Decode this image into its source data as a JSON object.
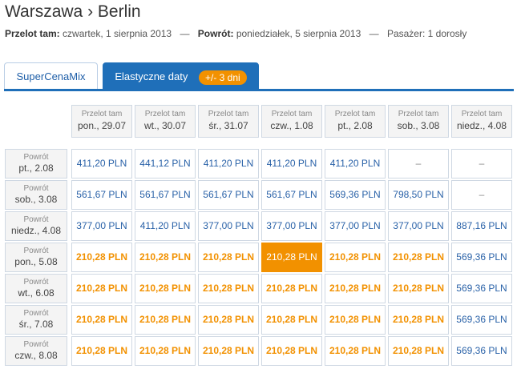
{
  "header": {
    "title": "Warszawa › Berlin",
    "outbound_label": "Przelot tam:",
    "outbound_value": "czwartek, 1 sierpnia 2013",
    "return_label": "Powrót:",
    "return_value": "poniedziałek, 5 sierpnia 2013",
    "passengers": "Pasażer: 1 dorosły",
    "separator": "—"
  },
  "tabs": {
    "inactive_label": "SuperCenaMix",
    "active_label": "Elastyczne daty",
    "badge": "+/- 3 dni"
  },
  "colors": {
    "accent_blue": "#1f6fb9",
    "price_blue": "#2a62a8",
    "price_orange": "#f29100",
    "selected_bg": "#f29100"
  },
  "grid": {
    "columns": [
      {
        "label": "Przelot tam",
        "date": "pon., 29.07"
      },
      {
        "label": "Przelot tam",
        "date": "wt., 30.07"
      },
      {
        "label": "Przelot tam",
        "date": "śr., 31.07"
      },
      {
        "label": "Przelot tam",
        "date": "czw., 1.08"
      },
      {
        "label": "Przelot tam",
        "date": "pt., 2.08"
      },
      {
        "label": "Przelot tam",
        "date": "sob., 3.08"
      },
      {
        "label": "Przelot tam",
        "date": "niedz., 4.08"
      }
    ],
    "rows": [
      {
        "label": "Powrót",
        "date": "pt., 2.08",
        "cells": [
          {
            "v": "411,20 PLN",
            "s": "blue"
          },
          {
            "v": "441,12 PLN",
            "s": "blue"
          },
          {
            "v": "411,20 PLN",
            "s": "blue"
          },
          {
            "v": "411,20 PLN",
            "s": "blue"
          },
          {
            "v": "411,20 PLN",
            "s": "blue"
          },
          {
            "v": "–",
            "s": "dash"
          },
          {
            "v": "–",
            "s": "dash"
          }
        ]
      },
      {
        "label": "Powrót",
        "date": "sob., 3.08",
        "cells": [
          {
            "v": "561,67 PLN",
            "s": "blue"
          },
          {
            "v": "561,67 PLN",
            "s": "blue"
          },
          {
            "v": "561,67 PLN",
            "s": "blue"
          },
          {
            "v": "561,67 PLN",
            "s": "blue"
          },
          {
            "v": "569,36 PLN",
            "s": "blue"
          },
          {
            "v": "798,50 PLN",
            "s": "blue"
          },
          {
            "v": "–",
            "s": "dash"
          }
        ]
      },
      {
        "label": "Powrót",
        "date": "niedz., 4.08",
        "cells": [
          {
            "v": "377,00 PLN",
            "s": "blue"
          },
          {
            "v": "411,20 PLN",
            "s": "blue"
          },
          {
            "v": "377,00 PLN",
            "s": "blue"
          },
          {
            "v": "377,00 PLN",
            "s": "blue"
          },
          {
            "v": "377,00 PLN",
            "s": "blue"
          },
          {
            "v": "377,00 PLN",
            "s": "blue"
          },
          {
            "v": "887,16 PLN",
            "s": "blue"
          }
        ]
      },
      {
        "label": "Powrót",
        "date": "pon., 5.08",
        "cells": [
          {
            "v": "210,28 PLN",
            "s": "orange"
          },
          {
            "v": "210,28 PLN",
            "s": "orange"
          },
          {
            "v": "210,28 PLN",
            "s": "orange"
          },
          {
            "v": "210,28 PLN",
            "s": "selected"
          },
          {
            "v": "210,28 PLN",
            "s": "orange"
          },
          {
            "v": "210,28 PLN",
            "s": "orange"
          },
          {
            "v": "569,36 PLN",
            "s": "blue"
          }
        ]
      },
      {
        "label": "Powrót",
        "date": "wt., 6.08",
        "cells": [
          {
            "v": "210,28 PLN",
            "s": "orange"
          },
          {
            "v": "210,28 PLN",
            "s": "orange"
          },
          {
            "v": "210,28 PLN",
            "s": "orange"
          },
          {
            "v": "210,28 PLN",
            "s": "orange"
          },
          {
            "v": "210,28 PLN",
            "s": "orange"
          },
          {
            "v": "210,28 PLN",
            "s": "orange"
          },
          {
            "v": "569,36 PLN",
            "s": "blue"
          }
        ]
      },
      {
        "label": "Powrót",
        "date": "śr., 7.08",
        "cells": [
          {
            "v": "210,28 PLN",
            "s": "orange"
          },
          {
            "v": "210,28 PLN",
            "s": "orange"
          },
          {
            "v": "210,28 PLN",
            "s": "orange"
          },
          {
            "v": "210,28 PLN",
            "s": "orange"
          },
          {
            "v": "210,28 PLN",
            "s": "orange"
          },
          {
            "v": "210,28 PLN",
            "s": "orange"
          },
          {
            "v": "569,36 PLN",
            "s": "blue"
          }
        ]
      },
      {
        "label": "Powrót",
        "date": "czw., 8.08",
        "cells": [
          {
            "v": "210,28 PLN",
            "s": "orange"
          },
          {
            "v": "210,28 PLN",
            "s": "orange"
          },
          {
            "v": "210,28 PLN",
            "s": "orange"
          },
          {
            "v": "210,28 PLN",
            "s": "orange"
          },
          {
            "v": "210,28 PLN",
            "s": "orange"
          },
          {
            "v": "210,28 PLN",
            "s": "orange"
          },
          {
            "v": "569,36 PLN",
            "s": "blue"
          }
        ]
      }
    ]
  }
}
